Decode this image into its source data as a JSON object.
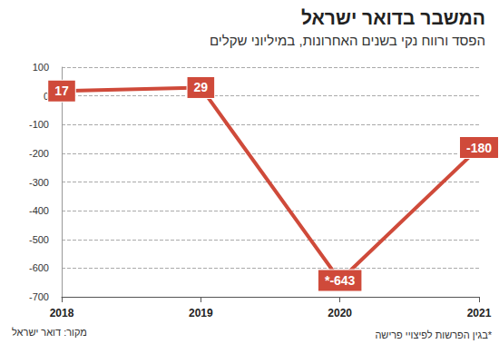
{
  "chart_data": {
    "type": "line",
    "title": "המשבר בדואר ישראל",
    "subtitle": "הפסד ורווח נקי בשנים האחרונות, במיליוני שקלים",
    "source": "מקור: דואר ישראל",
    "note": "*בגין הפרשות לפיצויי פרישה",
    "categories": [
      "2018",
      "2019",
      "2020",
      "2021"
    ],
    "values": [
      17,
      29,
      -643,
      -180
    ],
    "value_labels": [
      "17",
      "29",
      "*-643",
      "-180"
    ],
    "color": "#cf4a3a",
    "ylim": [
      -700,
      100
    ],
    "yticks": [
      -700,
      -600,
      -500,
      -400,
      -300,
      -200,
      -100,
      0,
      100
    ],
    "grid": true,
    "data_labels": true
  }
}
